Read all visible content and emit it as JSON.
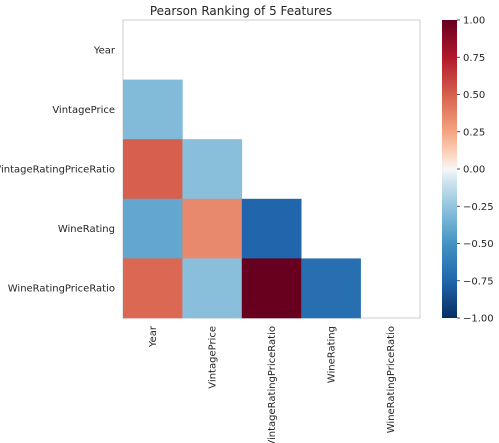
{
  "chart_data": {
    "type": "heatmap",
    "title": "Pearson Ranking of 5 Features",
    "features": [
      "Year",
      "VintagePrice",
      "VintageRatingPriceRatio",
      "WineRating",
      "WineRatingPriceRatio"
    ],
    "mask": "upper-triangle-and-diagonal",
    "cells": [
      {
        "row": "VintagePrice",
        "col": "Year",
        "value": -0.3
      },
      {
        "row": "VintageRatingPriceRatio",
        "col": "Year",
        "value": 0.5
      },
      {
        "row": "VintageRatingPriceRatio",
        "col": "VintagePrice",
        "value": -0.28
      },
      {
        "row": "WineRating",
        "col": "Year",
        "value": -0.4
      },
      {
        "row": "WineRating",
        "col": "VintagePrice",
        "value": 0.35
      },
      {
        "row": "WineRating",
        "col": "VintageRatingPriceRatio",
        "value": -0.75
      },
      {
        "row": "WineRatingPriceRatio",
        "col": "Year",
        "value": 0.47
      },
      {
        "row": "WineRatingPriceRatio",
        "col": "VintagePrice",
        "value": -0.28
      },
      {
        "row": "WineRatingPriceRatio",
        "col": "VintageRatingPriceRatio",
        "value": 1.0
      },
      {
        "row": "WineRatingPriceRatio",
        "col": "WineRating",
        "value": -0.7
      }
    ],
    "colorbar": {
      "range": [
        -1.0,
        1.0
      ],
      "ticks": [
        "1.00",
        "0.75",
        "0.50",
        "0.25",
        "0.00",
        "−0.25",
        "−0.50",
        "−0.75",
        "−1.00"
      ],
      "tick_values": [
        1.0,
        0.75,
        0.5,
        0.25,
        0.0,
        -0.25,
        -0.5,
        -0.75,
        -1.0
      ],
      "colormap": "RdBu_r"
    },
    "grid": false
  }
}
